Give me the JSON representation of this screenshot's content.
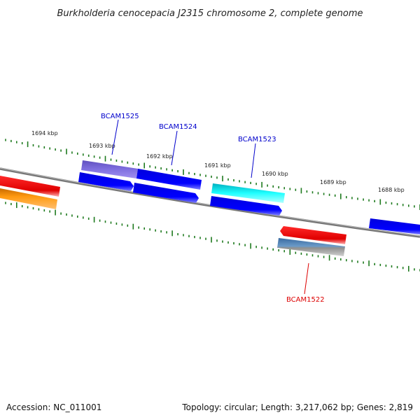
{
  "title": "Burkholderia cenocepacia J2315 chromosome 2, complete genome",
  "colors": {
    "backbone": "#777777",
    "tick": "#1e7a1e",
    "label_blue": "#0000cc",
    "label_red": "#dd0000"
  },
  "kbp_labels": [
    "1694 kbp",
    "1693 kbp",
    "1692 kbp",
    "1691 kbp",
    "1690 kbp",
    "1689 kbp",
    "1688 kbp"
  ],
  "gene_labels": [
    "BCAM1525",
    "BCAM1524",
    "BCAM1523",
    "BCAM1522"
  ],
  "footer": {
    "accession": "Accession: NC_011001",
    "summary": "Topology: circular; Length: 3,217,062 bp; Genes: 2,819"
  }
}
